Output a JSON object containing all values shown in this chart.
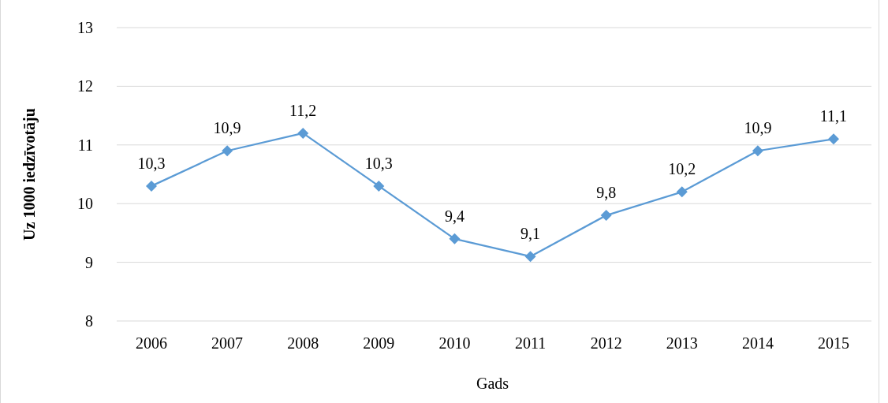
{
  "chart_data": {
    "type": "line",
    "xlabel": "Gads",
    "ylabel": "Uz 1000 iedzīvotāju",
    "categories": [
      "2006",
      "2007",
      "2008",
      "2009",
      "2010",
      "2011",
      "2012",
      "2013",
      "2014",
      "2015"
    ],
    "series": [
      {
        "color": "#5b9bd5",
        "values": [
          10.3,
          10.9,
          11.2,
          10.3,
          9.4,
          9.1,
          9.8,
          10.2,
          10.9,
          11.1
        ],
        "value_labels": [
          "10,3",
          "10,9",
          "11,2",
          "10,3",
          "9,4",
          "9,1",
          "9,8",
          "10,2",
          "10,9",
          "11,1"
        ]
      }
    ],
    "ylim": [
      8,
      13
    ],
    "yticks": [
      8,
      9,
      10,
      11,
      12,
      13
    ],
    "grid": "y",
    "marker": "diamond"
  }
}
